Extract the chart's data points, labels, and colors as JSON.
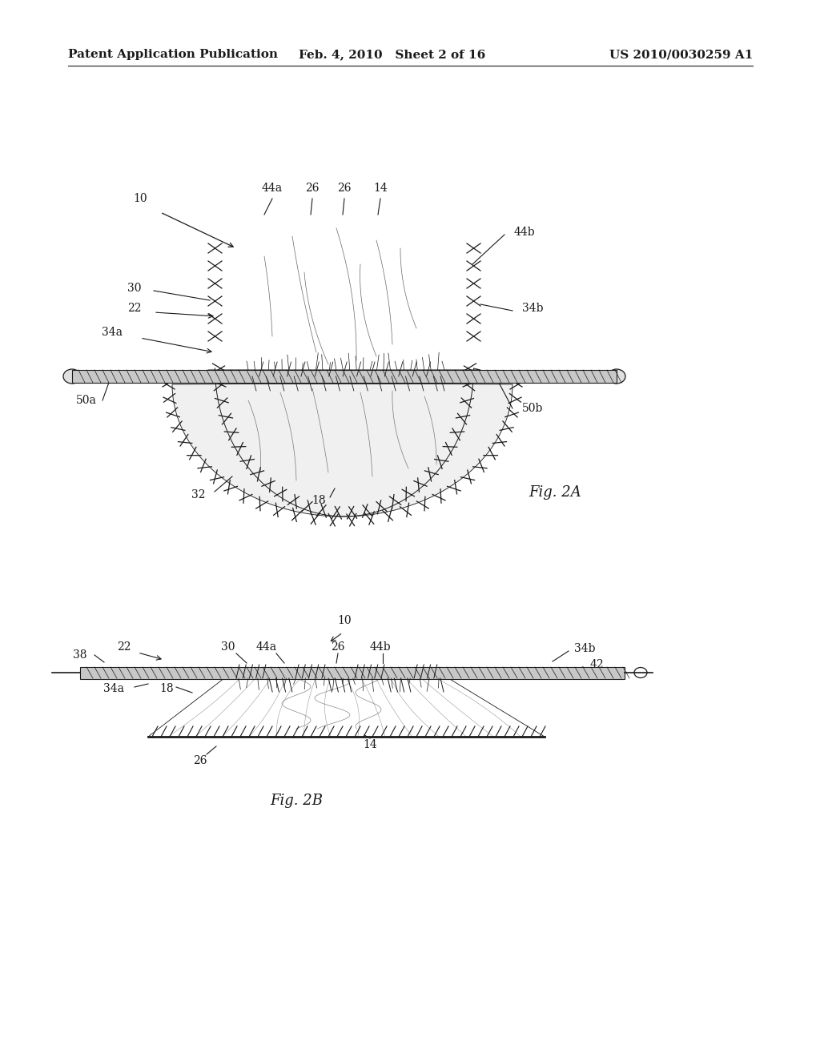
{
  "background_color": "#ffffff",
  "header_left": "Patent Application Publication",
  "header_middle": "Feb. 4, 2010   Sheet 2 of 16",
  "header_right": "US 2010/0030259 A1",
  "header_fontsize": 11,
  "fig2a_label": "Fig. 2A",
  "fig2b_label": "Fig. 2B",
  "label_fontsize": 10,
  "fig_label_fontsize": 13,
  "line_color": "#1a1a1a"
}
